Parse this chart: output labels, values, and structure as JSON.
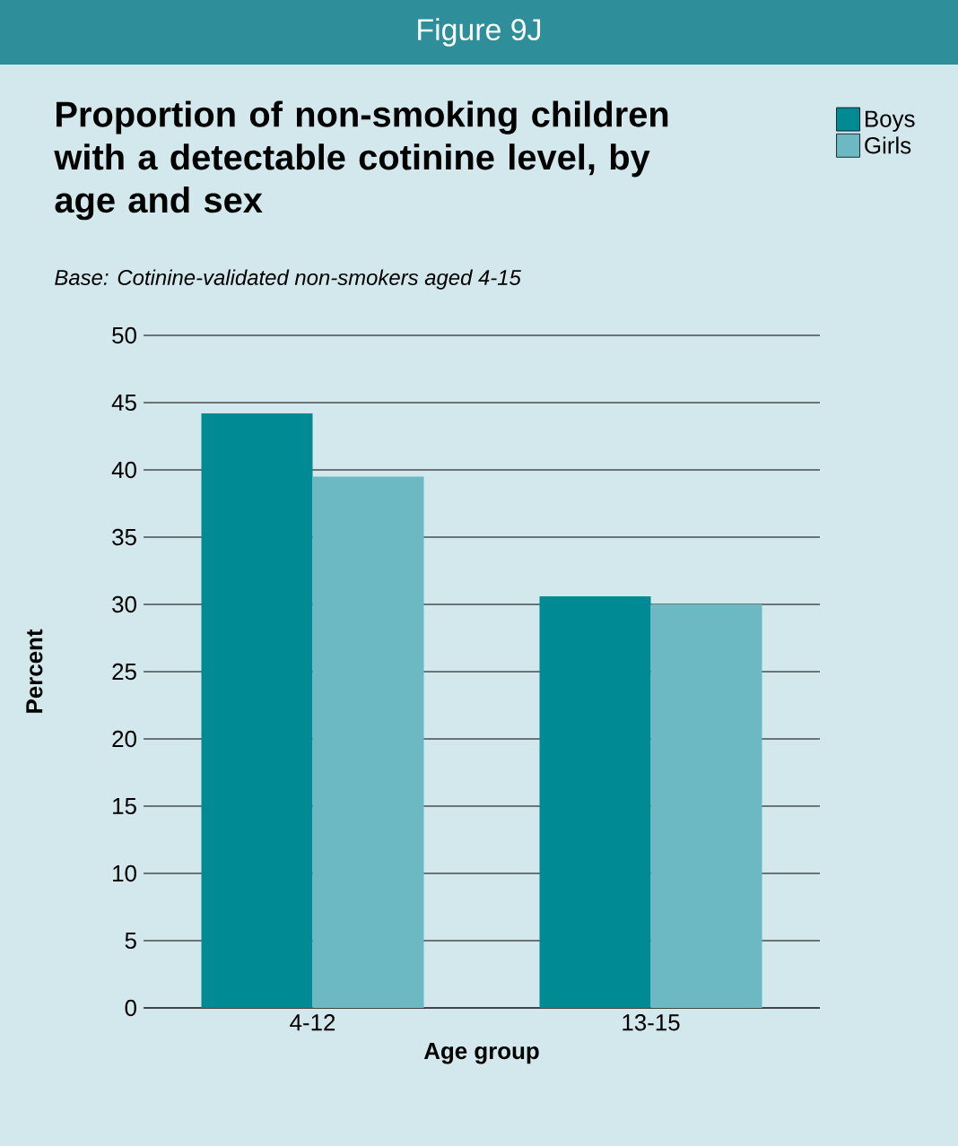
{
  "chart_data": {
    "type": "bar",
    "title": "Proportion of non-smoking children with a detectable cotinine level, by age and sex",
    "subtitle": "Base: Cotinine-validated non-smokers aged 4-15",
    "annotations": [
      "Figure 9J"
    ],
    "xlabel": "Age group",
    "ylabel": "Percent",
    "categories": [
      "4-12",
      "13-15"
    ],
    "series": [
      {
        "name": "Boys",
        "color": "#008a94",
        "values": [
          44.2,
          30.6
        ]
      },
      {
        "name": "Girls",
        "color": "#6cb9c3",
        "values": [
          39.5,
          30.0
        ]
      }
    ],
    "ylim": [
      0,
      50
    ],
    "yticks": [
      0,
      5,
      10,
      15,
      20,
      25,
      30,
      35,
      40,
      45,
      50
    ],
    "grid": "y",
    "legend": "top right"
  }
}
